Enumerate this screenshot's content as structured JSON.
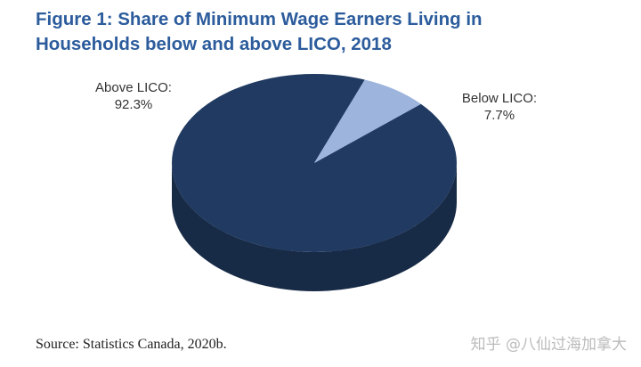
{
  "chart_data": {
    "type": "pie",
    "title": "Figure 1: Share of Minimum Wage Earners Living in Households below and above LICO, 2018",
    "categories": [
      "Above LICO:",
      "Below LICO:"
    ],
    "values": [
      92.3,
      7.7
    ],
    "value_labels": [
      "92.3%",
      "7.7%"
    ],
    "colors": [
      "#203a61",
      "#9db4dc"
    ],
    "source": "Source: Statistics Canada, 2020b.",
    "watermark": "知乎 @八仙过海加拿大"
  }
}
